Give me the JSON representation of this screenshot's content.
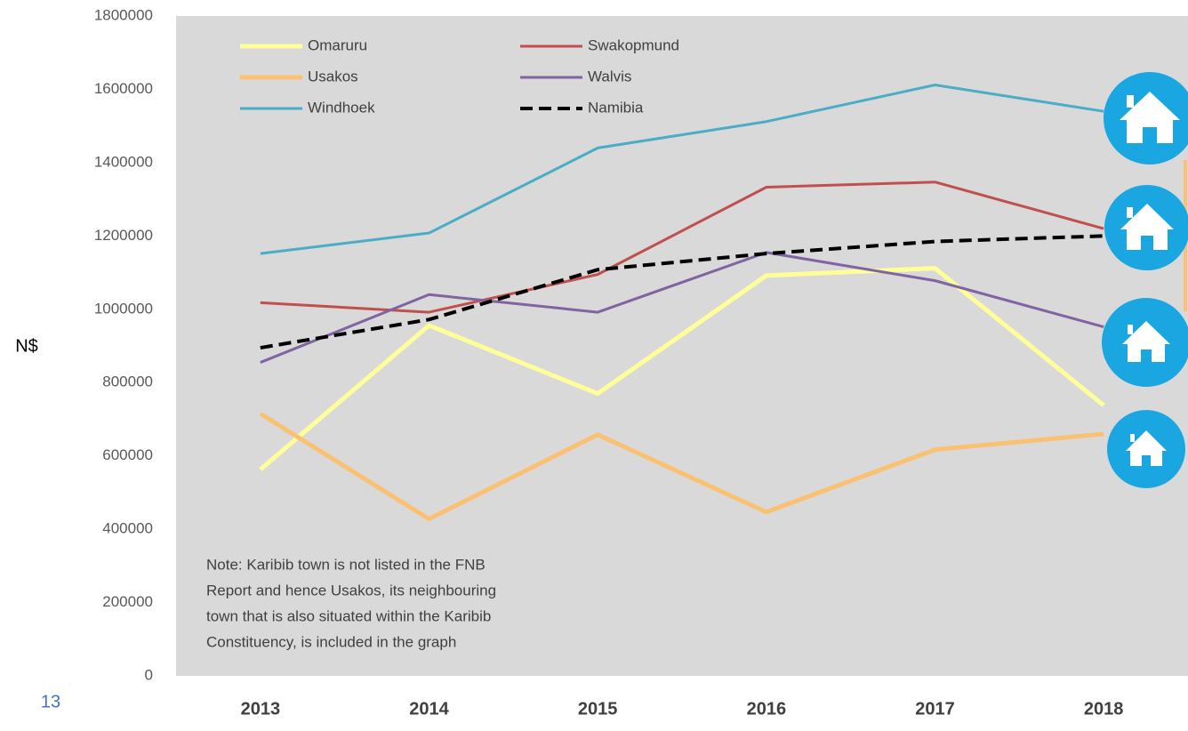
{
  "chart_data": {
    "type": "line",
    "y_label": "N$",
    "page_number": "13",
    "categories": [
      "2013",
      "2014",
      "2015",
      "2016",
      "2017",
      "2018"
    ],
    "series": [
      {
        "name": "Omaruru",
        "color": "#ffff99",
        "width": 5,
        "dashed": false,
        "values": [
          563000,
          956000,
          770000,
          1092000,
          1112000,
          738000
        ]
      },
      {
        "name": "Swakopmund",
        "color": "#c0504d",
        "width": 3,
        "dashed": false,
        "values": [
          1018000,
          992000,
          1095000,
          1333000,
          1347000,
          1220000
        ]
      },
      {
        "name": "Usakos",
        "color": "#fac172",
        "width": 5,
        "dashed": false,
        "values": [
          715000,
          428000,
          658000,
          447000,
          617000,
          660000
        ]
      },
      {
        "name": "Walvis",
        "color": "#8064a2",
        "width": 3,
        "dashed": false,
        "values": [
          855000,
          1040000,
          992000,
          1155000,
          1078000,
          952000
        ]
      },
      {
        "name": "Windhoek",
        "color": "#4bacc6",
        "width": 3,
        "dashed": false,
        "values": [
          1152000,
          1208000,
          1440000,
          1512000,
          1612000,
          1540000
        ]
      },
      {
        "name": "Namibia",
        "color": "#000000",
        "width": 4,
        "dashed": true,
        "values": [
          895000,
          972000,
          1108000,
          1152000,
          1185000,
          1200000
        ]
      }
    ],
    "ylim": [
      0,
      1800000
    ],
    "yticks": [
      0,
      200000,
      400000,
      600000,
      800000,
      1000000,
      1200000,
      1400000,
      1600000,
      1800000
    ],
    "note": [
      "Note: Karibib town is not listed in the FNB",
      "Report and hence Usakos, its neighbouring",
      "town that is also situated within the Karibib",
      "Constituency, is included in the graph"
    ]
  }
}
